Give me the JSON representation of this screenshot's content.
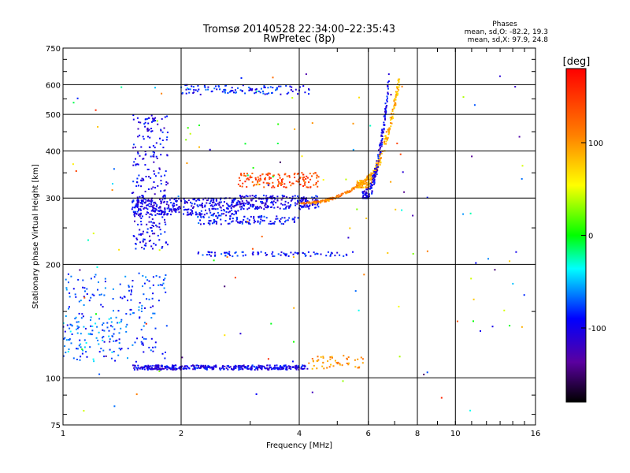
{
  "chart_data": {
    "type": "scatter",
    "title": "Tromsø 20140528 22:34:00–22:35:43",
    "subtitle": "RwPretec (8p)",
    "xlabel": "Frequency [MHz]",
    "ylabel": "Stationary phase Virtual Height [km]",
    "x_scale": "log",
    "y_scale": "log",
    "xlim": [
      1,
      16
    ],
    "ylim": [
      75,
      750
    ],
    "x_ticks": [
      1,
      2,
      4,
      6,
      8,
      10,
      16
    ],
    "x_tick_labels": [
      "1",
      "2",
      "4",
      "6",
      "8",
      "10",
      "16"
    ],
    "y_ticks": [
      75,
      100,
      200,
      300,
      400,
      500,
      600,
      750
    ],
    "y_tick_labels": [
      "75",
      "100",
      "200",
      "300",
      "400",
      "500",
      "600",
      "750"
    ],
    "grid": true,
    "legend": {
      "title": "Phases",
      "lines": [
        "mean, sd,O: -82.2, 19.3",
        "mean, sd,X:  97.9, 24.8"
      ],
      "placement": "top-right"
    },
    "colorbar": {
      "label": "[deg]",
      "range": [
        -180,
        180
      ],
      "ticks": [
        100,
        0,
        -100
      ],
      "tick_labels": [
        "100",
        "0",
        "-100"
      ],
      "placement": "right"
    },
    "traces": [
      {
        "x_range": [
          1.5,
          2.8
        ],
        "y_range": [
          270,
          300
        ],
        "phase": -100,
        "shape": "flat",
        "count": 320
      },
      {
        "x_range": [
          2.8,
          4.5
        ],
        "y_range": [
          280,
          305
        ],
        "phase": -100,
        "shape": "flat",
        "count": 220
      },
      {
        "x_range": [
          2.2,
          4.0
        ],
        "y_range": [
          255,
          270
        ],
        "phase": -90,
        "shape": "flat",
        "count": 120
      },
      {
        "x_range": [
          4.0,
          5.8
        ],
        "y_range": [
          290,
          330
        ],
        "phase": 110,
        "shape": "rise",
        "count": 120
      },
      {
        "x_range": [
          2.8,
          4.5
        ],
        "y_range": [
          320,
          350
        ],
        "phase": 140,
        "shape": "flat",
        "count": 140
      },
      {
        "x_range": [
          5.6,
          7.2
        ],
        "y_range": [
          320,
          620
        ],
        "phase": 90,
        "shape": "rise",
        "count": 260
      },
      {
        "x_range": [
          5.8,
          6.8
        ],
        "y_range": [
          300,
          650
        ],
        "phase": -100,
        "shape": "rise",
        "count": 160
      },
      {
        "x_range": [
          1.5,
          1.85
        ],
        "y_range": [
          220,
          500
        ],
        "phase": -100,
        "shape": "cloud",
        "count": 260
      },
      {
        "x_range": [
          1.0,
          1.85
        ],
        "y_range": [
          110,
          190
        ],
        "phase": -80,
        "shape": "cloud",
        "count": 200
      },
      {
        "x_range": [
          1.0,
          1.4
        ],
        "y_range": [
          110,
          145
        ],
        "phase": -60,
        "shape": "cloud",
        "count": 60
      },
      {
        "x_range": [
          1.5,
          4.2
        ],
        "y_range": [
          105,
          108
        ],
        "phase": -100,
        "shape": "flat",
        "count": 380
      },
      {
        "x_range": [
          4.2,
          6.0
        ],
        "y_range": [
          105,
          115
        ],
        "phase": 100,
        "shape": "flat",
        "count": 50
      },
      {
        "x_range": [
          2.0,
          4.3
        ],
        "y_range": [
          565,
          600
        ],
        "phase": -90,
        "shape": "flat",
        "count": 110
      },
      {
        "x_range": [
          2.2,
          5.5
        ],
        "y_range": [
          210,
          216
        ],
        "phase": -90,
        "shape": "flat",
        "count": 90
      },
      {
        "x_range": [
          1.0,
          15.0
        ],
        "y_range": [
          80,
          650
        ],
        "phase": 0,
        "shape": "scatter",
        "count": 140
      }
    ]
  }
}
